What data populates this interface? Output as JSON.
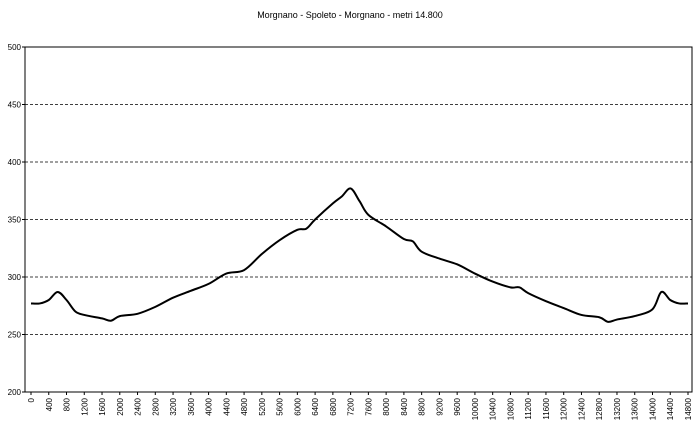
{
  "chart_data": {
    "type": "line",
    "title": "Morgnano - Spoleto - Morgnano - metri 14.800",
    "x": [
      0,
      200,
      400,
      600,
      800,
      1000,
      1200,
      1600,
      1800,
      2000,
      2400,
      2800,
      3200,
      3600,
      4000,
      4400,
      4800,
      5200,
      5600,
      6000,
      6200,
      6400,
      6800,
      7000,
      7200,
      7400,
      7600,
      8000,
      8400,
      8600,
      8800,
      9200,
      9600,
      10000,
      10400,
      10800,
      11000,
      11200,
      11600,
      12000,
      12400,
      12800,
      13000,
      13200,
      13600,
      14000,
      14200,
      14400,
      14600,
      14800
    ],
    "values": [
      277,
      277,
      280,
      287,
      280,
      270,
      267,
      264,
      262,
      266,
      268,
      274,
      282,
      288,
      294,
      303,
      306,
      320,
      332,
      341,
      342,
      350,
      364,
      370,
      377,
      366,
      354,
      344,
      333,
      331,
      322,
      316,
      311,
      303,
      296,
      291,
      291,
      286,
      279,
      273,
      267,
      265,
      261,
      263,
      266,
      272,
      287,
      280,
      277,
      277
    ],
    "color": "#000000",
    "xlim": [
      0,
      14800
    ],
    "xticks": [
      0,
      400,
      800,
      1200,
      1600,
      2000,
      2400,
      2800,
      3200,
      3600,
      4000,
      4400,
      4800,
      5200,
      5600,
      6000,
      6400,
      6800,
      7200,
      7600,
      8000,
      8400,
      8800,
      9200,
      9600,
      10000,
      10400,
      10800,
      11200,
      11600,
      12000,
      12400,
      12800,
      13200,
      13600,
      14000,
      14400,
      14800
    ],
    "ylim": [
      200,
      500
    ],
    "yticks": [
      200,
      250,
      300,
      350,
      400,
      450,
      500
    ],
    "grid": true
  }
}
